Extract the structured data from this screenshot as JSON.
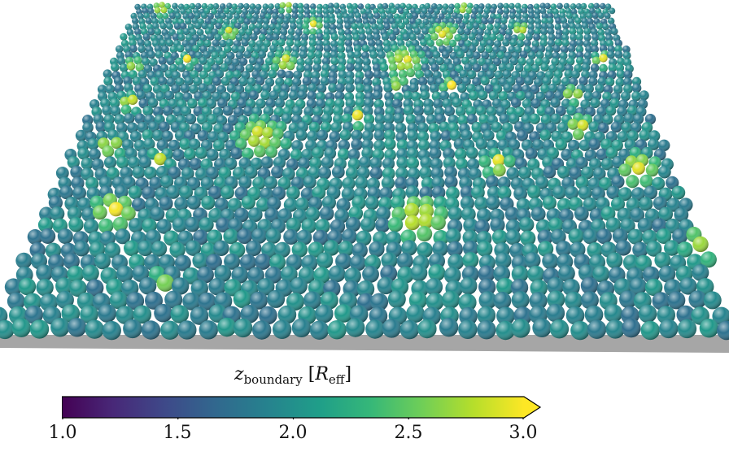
{
  "figure": {
    "colorbar": {
      "title_symbol": "z",
      "title_subscript": "boundary",
      "title_unit_open": "[",
      "title_unit_symbol": "R",
      "title_unit_subscript": "eff",
      "title_unit_close": "]",
      "ticks": [
        "1.0",
        "1.5",
        "2.0",
        "2.5",
        "3.0"
      ],
      "range": [
        1.0,
        3.0
      ],
      "extend": "max",
      "colormap": "viridis",
      "colormap_stops": [
        "#440154",
        "#482878",
        "#3e4989",
        "#31688e",
        "#26828e",
        "#1f9e89",
        "#35b779",
        "#6ece58",
        "#b5de2b",
        "#fde725"
      ]
    },
    "scene": {
      "description_colors": {
        "floor": "#a6a6a6",
        "low_particle": "#3a5a8a",
        "mid_particle": "#2a7f8e",
        "high_particle": "#fde725"
      }
    }
  }
}
